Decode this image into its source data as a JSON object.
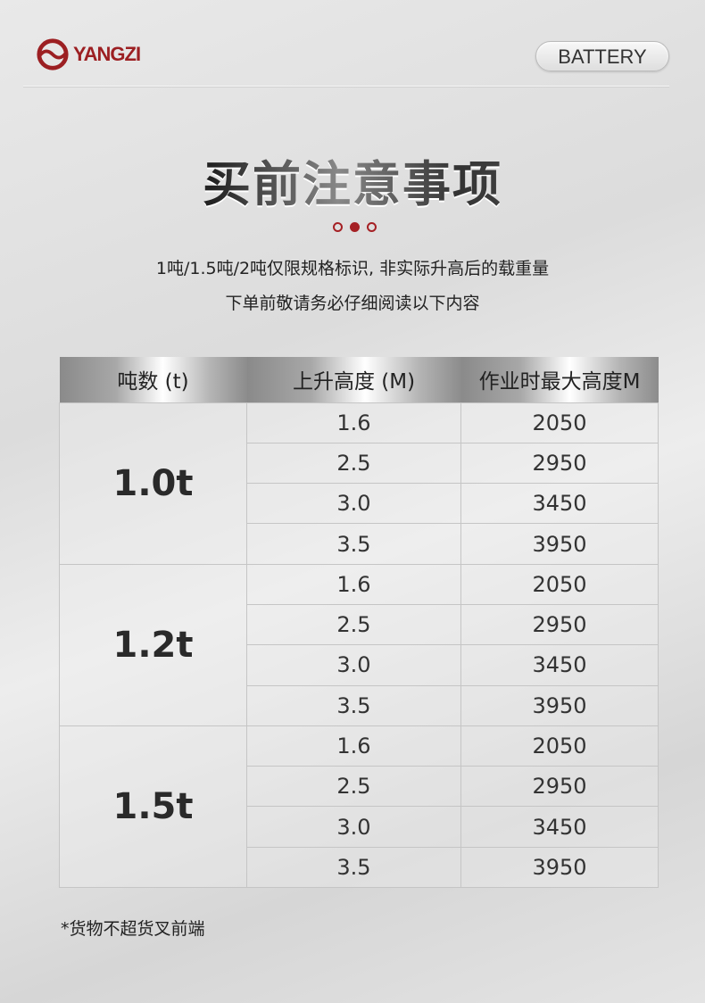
{
  "brand": {
    "logo_text": "YANGZI",
    "badge": "BATTERY",
    "accent": "#a52024"
  },
  "title": "买前注意事项",
  "subtitle_lines": [
    "1吨/1.5吨/2吨仅限规格标识, 非实际升高后的载重量",
    "下单前敬请务必仔细阅读以下内容"
  ],
  "table": {
    "headers": [
      "吨数 (t)",
      "上升高度 (M)",
      "作业时最大高度M"
    ],
    "groups": [
      {
        "ton": "1.0t",
        "rows": [
          [
            "1.6",
            "2050"
          ],
          [
            "2.5",
            "2950"
          ],
          [
            "3.0",
            "3450"
          ],
          [
            "3.5",
            "3950"
          ]
        ]
      },
      {
        "ton": "1.2t",
        "rows": [
          [
            "1.6",
            "2050"
          ],
          [
            "2.5",
            "2950"
          ],
          [
            "3.0",
            "3450"
          ],
          [
            "3.5",
            "3950"
          ]
        ]
      },
      {
        "ton": "1.5t",
        "rows": [
          [
            "1.6",
            "2050"
          ],
          [
            "2.5",
            "2950"
          ],
          [
            "3.0",
            "3450"
          ],
          [
            "3.5",
            "3950"
          ]
        ]
      }
    ]
  },
  "note": "*货物不超货叉前端"
}
